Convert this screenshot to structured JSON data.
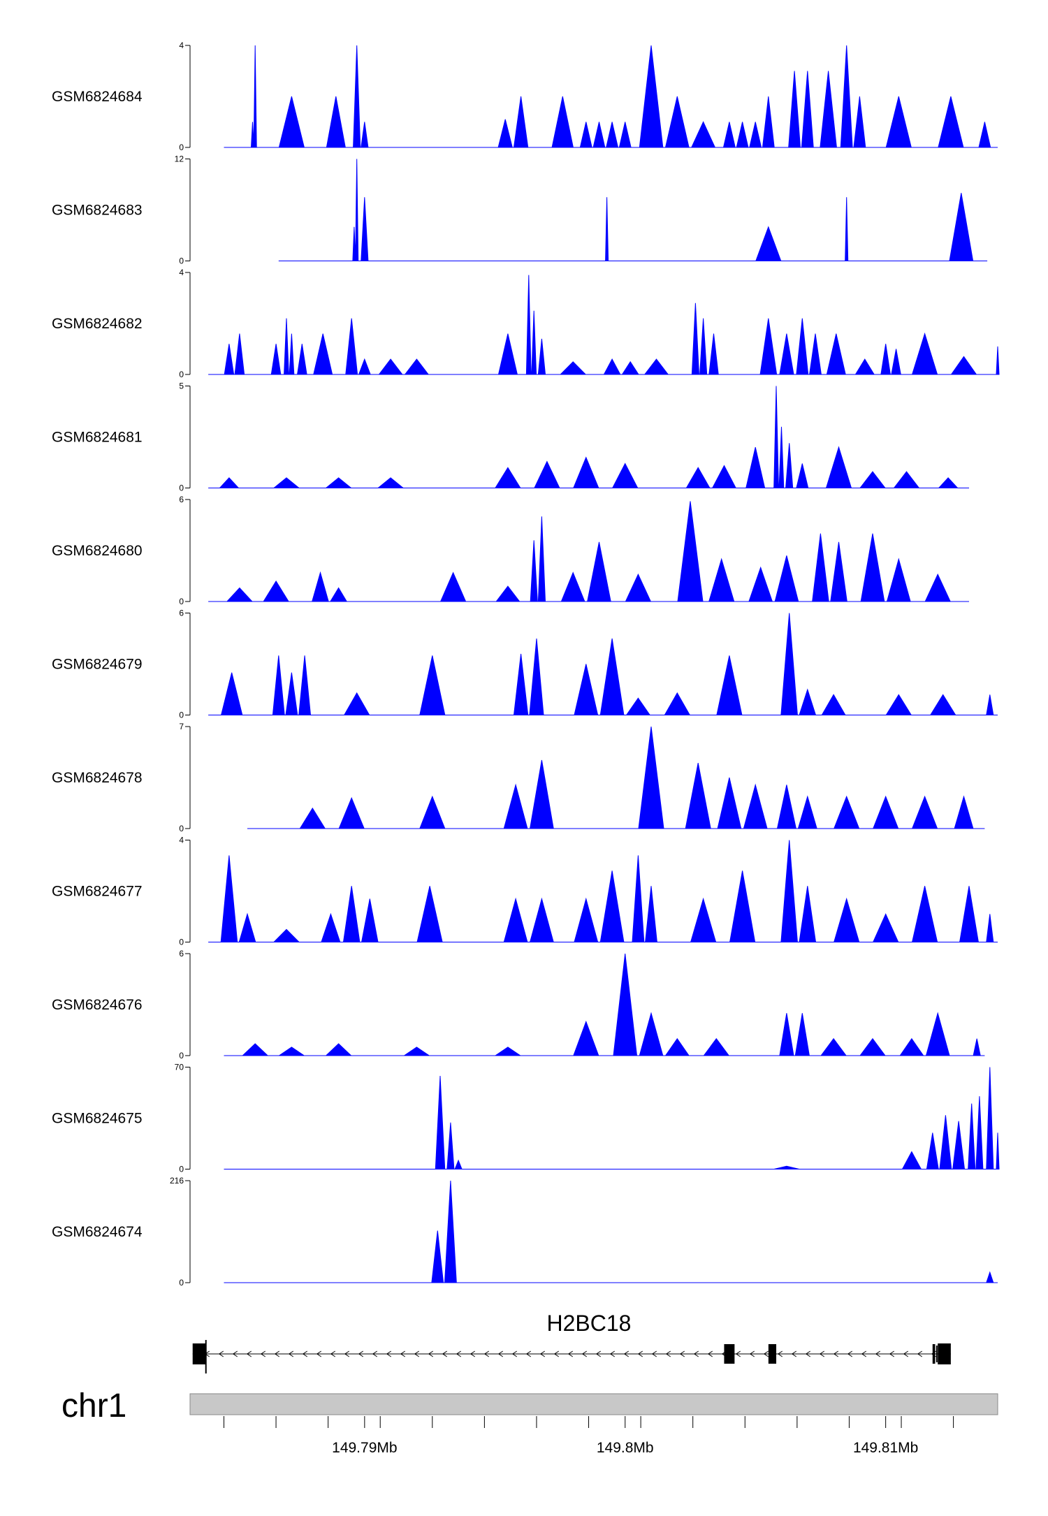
{
  "chart_data": {
    "type": "area",
    "genome": {
      "chromosome": "chr1",
      "xlim": [
        149.7833,
        149.8143
      ],
      "units": "Mb"
    },
    "colors": {
      "signal": "#0000ff",
      "axis": "#000000",
      "ideogram": "#c8c8c8",
      "gene": "#000000"
    },
    "tracks": [
      {
        "name": "GSM6824684",
        "ymax": 4,
        "ymax_label": "4",
        "ymin_label": "0",
        "start": 149.7846,
        "end": 149.8143,
        "peaks": [
          [
            149.7858,
            4.0
          ],
          [
            149.7857,
            1.0
          ],
          [
            149.7872,
            2.0
          ],
          [
            149.7889,
            2.0
          ],
          [
            149.7897,
            4.0
          ],
          [
            149.79,
            1.0
          ],
          [
            149.7954,
            1.1
          ],
          [
            149.796,
            2.0
          ],
          [
            149.7976,
            2.0
          ],
          [
            149.7985,
            1.0
          ],
          [
            149.799,
            1.0
          ],
          [
            149.7995,
            1.0
          ],
          [
            149.8,
            1.0
          ],
          [
            149.801,
            4.0
          ],
          [
            149.802,
            2.0
          ],
          [
            149.803,
            1.0
          ],
          [
            149.804,
            1.0
          ],
          [
            149.8045,
            1.0
          ],
          [
            149.805,
            1.0
          ],
          [
            149.8055,
            2.0
          ],
          [
            149.8065,
            3.0
          ],
          [
            149.807,
            3.0
          ],
          [
            149.8078,
            3.0
          ],
          [
            149.8085,
            4.0
          ],
          [
            149.809,
            2.0
          ],
          [
            149.8105,
            2.0
          ],
          [
            149.8125,
            2.0
          ],
          [
            149.8138,
            1.0
          ]
        ]
      },
      {
        "name": "GSM6824683",
        "ymax": 12,
        "ymax_label": "12",
        "ymin_label": "0",
        "start": 149.7867,
        "end": 149.8139,
        "peaks": [
          [
            149.7897,
            12.0
          ],
          [
            149.7896,
            4.0
          ],
          [
            149.79,
            7.5
          ],
          [
            149.7993,
            7.5
          ],
          [
            149.7993,
            4.0
          ],
          [
            149.8055,
            4.0
          ],
          [
            149.8085,
            7.5
          ],
          [
            149.8085,
            4.0
          ],
          [
            149.8129,
            8.0
          ]
        ]
      },
      {
        "name": "GSM6824682",
        "ymax": 4,
        "ymax_label": "4",
        "ymin_label": "0",
        "start": 149.784,
        "end": 149.8143,
        "peaks": [
          [
            149.7848,
            1.2
          ],
          [
            149.7852,
            1.6
          ],
          [
            149.7866,
            1.2
          ],
          [
            149.787,
            2.2
          ],
          [
            149.7872,
            1.6
          ],
          [
            149.7876,
            1.2
          ],
          [
            149.7884,
            1.6
          ],
          [
            149.7895,
            2.2
          ],
          [
            149.79,
            0.6
          ],
          [
            149.791,
            0.6
          ],
          [
            149.792,
            0.6
          ],
          [
            149.7955,
            1.6
          ],
          [
            149.7963,
            3.9
          ],
          [
            149.7965,
            2.5
          ],
          [
            149.7968,
            1.4
          ],
          [
            149.798,
            0.5
          ],
          [
            149.7995,
            0.6
          ],
          [
            149.8002,
            0.5
          ],
          [
            149.8012,
            0.6
          ],
          [
            149.8027,
            2.8
          ],
          [
            149.803,
            2.2
          ],
          [
            149.8034,
            1.6
          ],
          [
            149.8055,
            2.2
          ],
          [
            149.8062,
            1.6
          ],
          [
            149.8068,
            2.2
          ],
          [
            149.8073,
            1.6
          ],
          [
            149.8081,
            1.6
          ],
          [
            149.8092,
            0.6
          ],
          [
            149.81,
            1.2
          ],
          [
            149.8104,
            1.0
          ],
          [
            149.8115,
            1.6
          ],
          [
            149.813,
            0.7
          ],
          [
            149.8143,
            1.1
          ]
        ]
      },
      {
        "name": "GSM6824681",
        "ymax": 5,
        "ymax_label": "5",
        "ymin_label": "0",
        "start": 149.784,
        "end": 149.8132,
        "peaks": [
          [
            149.7848,
            0.5
          ],
          [
            149.787,
            0.5
          ],
          [
            149.789,
            0.5
          ],
          [
            149.791,
            0.5
          ],
          [
            149.7955,
            1.0
          ],
          [
            149.797,
            1.3
          ],
          [
            149.7985,
            1.5
          ],
          [
            149.8,
            1.2
          ],
          [
            149.8028,
            1.0
          ],
          [
            149.8038,
            1.1
          ],
          [
            149.805,
            2.0
          ],
          [
            149.8058,
            5.0
          ],
          [
            149.806,
            3.0
          ],
          [
            149.8063,
            2.2
          ],
          [
            149.8068,
            1.2
          ],
          [
            149.8082,
            2.0
          ],
          [
            149.8095,
            0.8
          ],
          [
            149.8108,
            0.8
          ],
          [
            149.8124,
            0.5
          ]
        ]
      },
      {
        "name": "GSM6824680",
        "ymax": 6,
        "ymax_label": "6",
        "ymin_label": "0",
        "start": 149.784,
        "end": 149.8132,
        "peaks": [
          [
            149.7852,
            0.8
          ],
          [
            149.7866,
            1.2
          ],
          [
            149.7883,
            1.7
          ],
          [
            149.789,
            0.8
          ],
          [
            149.7934,
            1.7
          ],
          [
            149.7955,
            0.9
          ],
          [
            149.7965,
            3.6
          ],
          [
            149.7968,
            5.0
          ],
          [
            149.798,
            1.7
          ],
          [
            149.799,
            3.5
          ],
          [
            149.8005,
            1.6
          ],
          [
            149.8025,
            5.9
          ],
          [
            149.8037,
            2.5
          ],
          [
            149.8052,
            2.0
          ],
          [
            149.8062,
            2.7
          ],
          [
            149.8075,
            4.0
          ],
          [
            149.8082,
            3.5
          ],
          [
            149.8095,
            4.0
          ],
          [
            149.8105,
            2.5
          ],
          [
            149.812,
            1.6
          ]
        ]
      },
      {
        "name": "GSM6824679",
        "ymax": 6,
        "ymax_label": "6",
        "ymin_label": "0",
        "start": 149.784,
        "end": 149.8143,
        "peaks": [
          [
            149.7849,
            2.5
          ],
          [
            149.7867,
            3.5
          ],
          [
            149.7872,
            2.5
          ],
          [
            149.7877,
            3.5
          ],
          [
            149.7897,
            1.3
          ],
          [
            149.7926,
            3.5
          ],
          [
            149.796,
            3.6
          ],
          [
            149.7966,
            4.5
          ],
          [
            149.7985,
            3.0
          ],
          [
            149.7995,
            4.5
          ],
          [
            149.8005,
            1.0
          ],
          [
            149.802,
            1.3
          ],
          [
            149.804,
            3.5
          ],
          [
            149.8063,
            6.0
          ],
          [
            149.807,
            1.5
          ],
          [
            149.808,
            1.2
          ],
          [
            149.8105,
            1.2
          ],
          [
            149.8122,
            1.2
          ],
          [
            149.814,
            1.2
          ]
        ]
      },
      {
        "name": "GSM6824678",
        "ymax": 7,
        "ymax_label": "7",
        "ymin_label": "0",
        "start": 149.7855,
        "end": 149.8138,
        "peaks": [
          [
            149.788,
            1.4
          ],
          [
            149.7895,
            2.1
          ],
          [
            149.7926,
            2.2
          ],
          [
            149.7958,
            3.0
          ],
          [
            149.7968,
            4.7
          ],
          [
            149.801,
            7.0
          ],
          [
            149.8028,
            4.5
          ],
          [
            149.804,
            3.5
          ],
          [
            149.805,
            3.0
          ],
          [
            149.8062,
            3.0
          ],
          [
            149.807,
            2.2
          ],
          [
            149.8085,
            2.2
          ],
          [
            149.81,
            2.2
          ],
          [
            149.8115,
            2.2
          ],
          [
            149.813,
            2.2
          ]
        ]
      },
      {
        "name": "GSM6824677",
        "ymax": 4,
        "ymax_label": "4",
        "ymin_label": "0",
        "start": 149.784,
        "end": 149.8143,
        "peaks": [
          [
            149.7848,
            3.4
          ],
          [
            149.7855,
            1.1
          ],
          [
            149.787,
            0.5
          ],
          [
            149.7887,
            1.1
          ],
          [
            149.7895,
            2.2
          ],
          [
            149.7902,
            1.7
          ],
          [
            149.7925,
            2.2
          ],
          [
            149.7958,
            1.7
          ],
          [
            149.7968,
            1.7
          ],
          [
            149.7985,
            1.7
          ],
          [
            149.7995,
            2.8
          ],
          [
            149.8005,
            3.4
          ],
          [
            149.801,
            2.2
          ],
          [
            149.803,
            1.7
          ],
          [
            149.8045,
            2.8
          ],
          [
            149.8063,
            4.0
          ],
          [
            149.807,
            2.2
          ],
          [
            149.8085,
            1.7
          ],
          [
            149.81,
            1.1
          ],
          [
            149.8115,
            2.2
          ],
          [
            149.8132,
            2.2
          ],
          [
            149.814,
            1.1
          ]
        ]
      },
      {
        "name": "GSM6824676",
        "ymax": 6,
        "ymax_label": "6",
        "ymin_label": "0",
        "start": 149.7846,
        "end": 149.8138,
        "peaks": [
          [
            149.7858,
            0.7
          ],
          [
            149.7872,
            0.5
          ],
          [
            149.789,
            0.7
          ],
          [
            149.792,
            0.5
          ],
          [
            149.7955,
            0.5
          ],
          [
            149.7985,
            2.0
          ],
          [
            149.8,
            6.0
          ],
          [
            149.801,
            2.5
          ],
          [
            149.802,
            1.0
          ],
          [
            149.8035,
            1.0
          ],
          [
            149.8062,
            2.5
          ],
          [
            149.8068,
            2.5
          ],
          [
            149.808,
            1.0
          ],
          [
            149.8095,
            1.0
          ],
          [
            149.811,
            1.0
          ],
          [
            149.812,
            2.5
          ],
          [
            149.8135,
            1.0
          ]
        ]
      },
      {
        "name": "GSM6824675",
        "ymax": 70,
        "ymax_label": "70",
        "ymin_label": "0",
        "start": 149.7846,
        "end": 149.8143,
        "peaks": [
          [
            149.7929,
            64.0
          ],
          [
            149.7933,
            32.0
          ],
          [
            149.7936,
            6.0
          ],
          [
            149.8062,
            2.0
          ],
          [
            149.811,
            12.0
          ],
          [
            149.8118,
            25.0
          ],
          [
            149.8123,
            37.0
          ],
          [
            149.8128,
            33.0
          ],
          [
            149.8133,
            45.0
          ],
          [
            149.8136,
            50.0
          ],
          [
            149.814,
            70.0
          ],
          [
            149.8143,
            25.0
          ]
        ]
      },
      {
        "name": "GSM6824674",
        "ymax": 216,
        "ymax_label": "216",
        "ymin_label": "0",
        "start": 149.7846,
        "end": 149.8143,
        "peaks": [
          [
            149.7928,
            110.0
          ],
          [
            149.7933,
            216.0
          ],
          [
            149.814,
            22.0
          ]
        ]
      }
    ],
    "gene": {
      "name": "H2BC18",
      "strand": "-",
      "start": 149.7834,
      "end": 149.8125,
      "exons": [
        [
          149.7834,
          149.7839
        ],
        [
          149.8038,
          149.8042
        ],
        [
          149.8055,
          149.8058
        ],
        [
          149.8118,
          149.8119
        ],
        [
          149.812,
          149.8125
        ]
      ]
    },
    "ideogram": {
      "chromosome": "chr1",
      "range": [
        149.7833,
        149.8143
      ]
    },
    "axis": {
      "minor_ticks": [
        149.7846,
        149.7866,
        149.7886,
        149.7906,
        149.7926,
        149.7946,
        149.7966,
        149.7986,
        149.8006,
        149.8026,
        149.8046,
        149.8066,
        149.8086,
        149.8106,
        149.8126
      ],
      "labeled_ticks": [
        {
          "value": 149.79,
          "label": "149.79Mb"
        },
        {
          "value": 149.8,
          "label": "149.8Mb"
        },
        {
          "value": 149.81,
          "label": "149.81Mb"
        }
      ]
    }
  }
}
